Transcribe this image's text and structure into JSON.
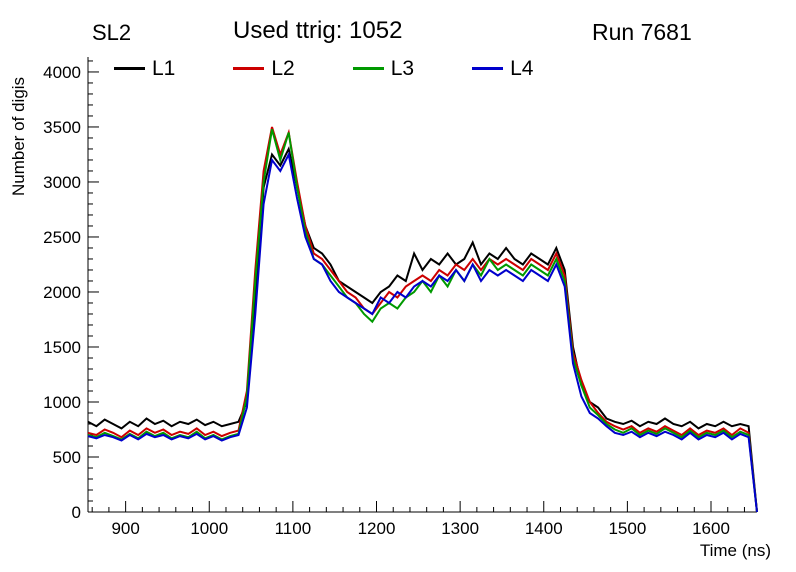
{
  "header": {
    "left": "SL2",
    "center": "Used ttrig: 1052",
    "right": "Run 7681"
  },
  "axes": {
    "xlabel": "Time (ns)",
    "ylabel": "Number of digis"
  },
  "chart_data": {
    "type": "line",
    "title": "Used ttrig: 1052",
    "xlabel": "Time (ns)",
    "ylabel": "Number of digis",
    "xlim": [
      855,
      1655
    ],
    "ylim": [
      0,
      4136
    ],
    "grid": false,
    "legend_position": "top-inside-horizontal",
    "x_ticks": [
      900,
      1000,
      1100,
      1200,
      1300,
      1400,
      1500,
      1600
    ],
    "y_ticks": [
      0,
      500,
      1000,
      1500,
      2000,
      2500,
      3000,
      3500,
      4000
    ],
    "x": [
      855,
      865,
      875,
      885,
      895,
      905,
      915,
      925,
      935,
      945,
      955,
      965,
      975,
      985,
      995,
      1005,
      1015,
      1025,
      1035,
      1045,
      1055,
      1065,
      1075,
      1085,
      1095,
      1105,
      1115,
      1125,
      1135,
      1145,
      1155,
      1165,
      1175,
      1185,
      1195,
      1205,
      1215,
      1225,
      1235,
      1245,
      1255,
      1265,
      1275,
      1285,
      1295,
      1305,
      1315,
      1325,
      1335,
      1345,
      1355,
      1365,
      1375,
      1385,
      1395,
      1405,
      1415,
      1425,
      1435,
      1445,
      1455,
      1465,
      1475,
      1485,
      1495,
      1505,
      1515,
      1525,
      1535,
      1545,
      1555,
      1565,
      1575,
      1585,
      1595,
      1605,
      1615,
      1625,
      1635,
      1645,
      1655
    ],
    "series": [
      {
        "name": "L1",
        "color": "#000000",
        "values": [
          820,
          780,
          840,
          800,
          760,
          820,
          780,
          850,
          800,
          830,
          780,
          820,
          800,
          840,
          790,
          820,
          780,
          800,
          820,
          1000,
          1900,
          2950,
          3250,
          3150,
          3300,
          2950,
          2600,
          2400,
          2350,
          2250,
          2100,
          2050,
          2000,
          1950,
          1900,
          2000,
          2050,
          2150,
          2100,
          2350,
          2200,
          2300,
          2250,
          2350,
          2250,
          2300,
          2450,
          2250,
          2350,
          2300,
          2400,
          2300,
          2250,
          2350,
          2300,
          2250,
          2400,
          2200,
          1500,
          1150,
          1000,
          950,
          850,
          820,
          800,
          830,
          780,
          820,
          800,
          850,
          800,
          780,
          820,
          760,
          800,
          780,
          820,
          780,
          800,
          780,
          0
        ]
      },
      {
        "name": "L2",
        "color": "#cc0000",
        "values": [
          720,
          700,
          750,
          720,
          680,
          740,
          700,
          760,
          720,
          750,
          700,
          730,
          710,
          760,
          700,
          730,
          690,
          720,
          740,
          1100,
          2200,
          3100,
          3500,
          3250,
          3450,
          3000,
          2600,
          2350,
          2300,
          2200,
          2100,
          2000,
          1950,
          1850,
          1800,
          1900,
          2000,
          1950,
          2050,
          2100,
          2150,
          2100,
          2200,
          2150,
          2250,
          2200,
          2300,
          2200,
          2300,
          2250,
          2300,
          2250,
          2200,
          2300,
          2250,
          2200,
          2350,
          2150,
          1450,
          1200,
          1000,
          900,
          820,
          780,
          750,
          780,
          720,
          760,
          730,
          780,
          740,
          700,
          760,
          700,
          740,
          720,
          760,
          700,
          760,
          720,
          0
        ]
      },
      {
        "name": "L3",
        "color": "#009900",
        "values": [
          700,
          680,
          720,
          690,
          660,
          710,
          670,
          730,
          690,
          720,
          670,
          700,
          680,
          730,
          670,
          700,
          660,
          690,
          710,
          1050,
          2100,
          3000,
          3480,
          3200,
          3450,
          2950,
          2550,
          2300,
          2250,
          2150,
          2050,
          1950,
          1900,
          1800,
          1730,
          1850,
          1900,
          1850,
          1950,
          2000,
          2100,
          2000,
          2150,
          2050,
          2200,
          2100,
          2250,
          2150,
          2300,
          2200,
          2250,
          2200,
          2150,
          2250,
          2200,
          2150,
          2300,
          2100,
          1400,
          1150,
          950,
          880,
          800,
          750,
          720,
          760,
          700,
          740,
          710,
          760,
          720,
          680,
          740,
          680,
          720,
          700,
          740,
          680,
          730,
          700,
          0
        ]
      },
      {
        "name": "L4",
        "color": "#0000cc",
        "values": [
          690,
          670,
          700,
          680,
          650,
          700,
          660,
          710,
          680,
          700,
          660,
          690,
          670,
          710,
          660,
          690,
          650,
          680,
          700,
          950,
          1800,
          2800,
          3200,
          3100,
          3250,
          2850,
          2500,
          2300,
          2250,
          2100,
          2000,
          1950,
          1900,
          1850,
          1800,
          1950,
          1900,
          2000,
          1950,
          2050,
          2100,
          2050,
          2150,
          2100,
          2200,
          2100,
          2250,
          2100,
          2200,
          2150,
          2200,
          2150,
          2100,
          2200,
          2150,
          2100,
          2250,
          2050,
          1350,
          1050,
          900,
          850,
          780,
          720,
          700,
          730,
          680,
          720,
          690,
          730,
          700,
          660,
          720,
          660,
          700,
          680,
          720,
          660,
          710,
          680,
          0
        ]
      }
    ]
  }
}
